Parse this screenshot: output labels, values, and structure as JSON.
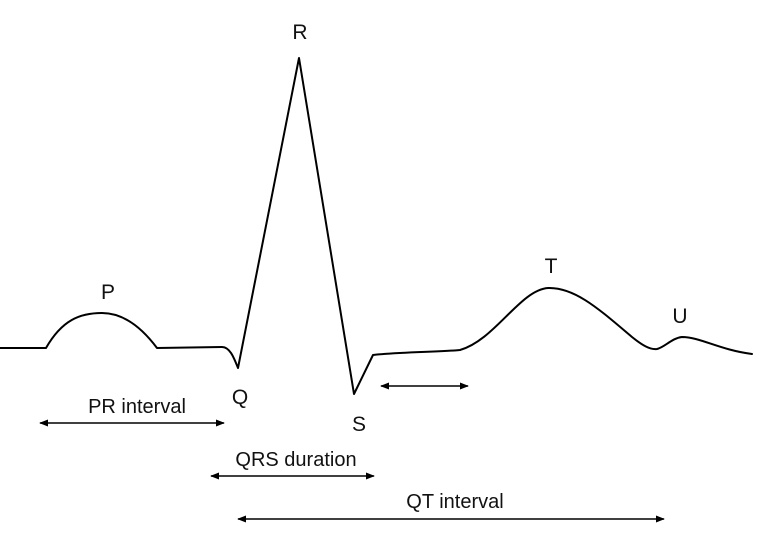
{
  "waves": {
    "p": "P",
    "q": "Q",
    "r": "R",
    "s": "S",
    "t": "T",
    "u": "U"
  },
  "intervals": {
    "pr": "PR interval",
    "qrs": "QRS duration",
    "qt": "QT interval"
  },
  "colors": {
    "line": "#000000",
    "text": "#111111",
    "background": "#ffffff"
  }
}
